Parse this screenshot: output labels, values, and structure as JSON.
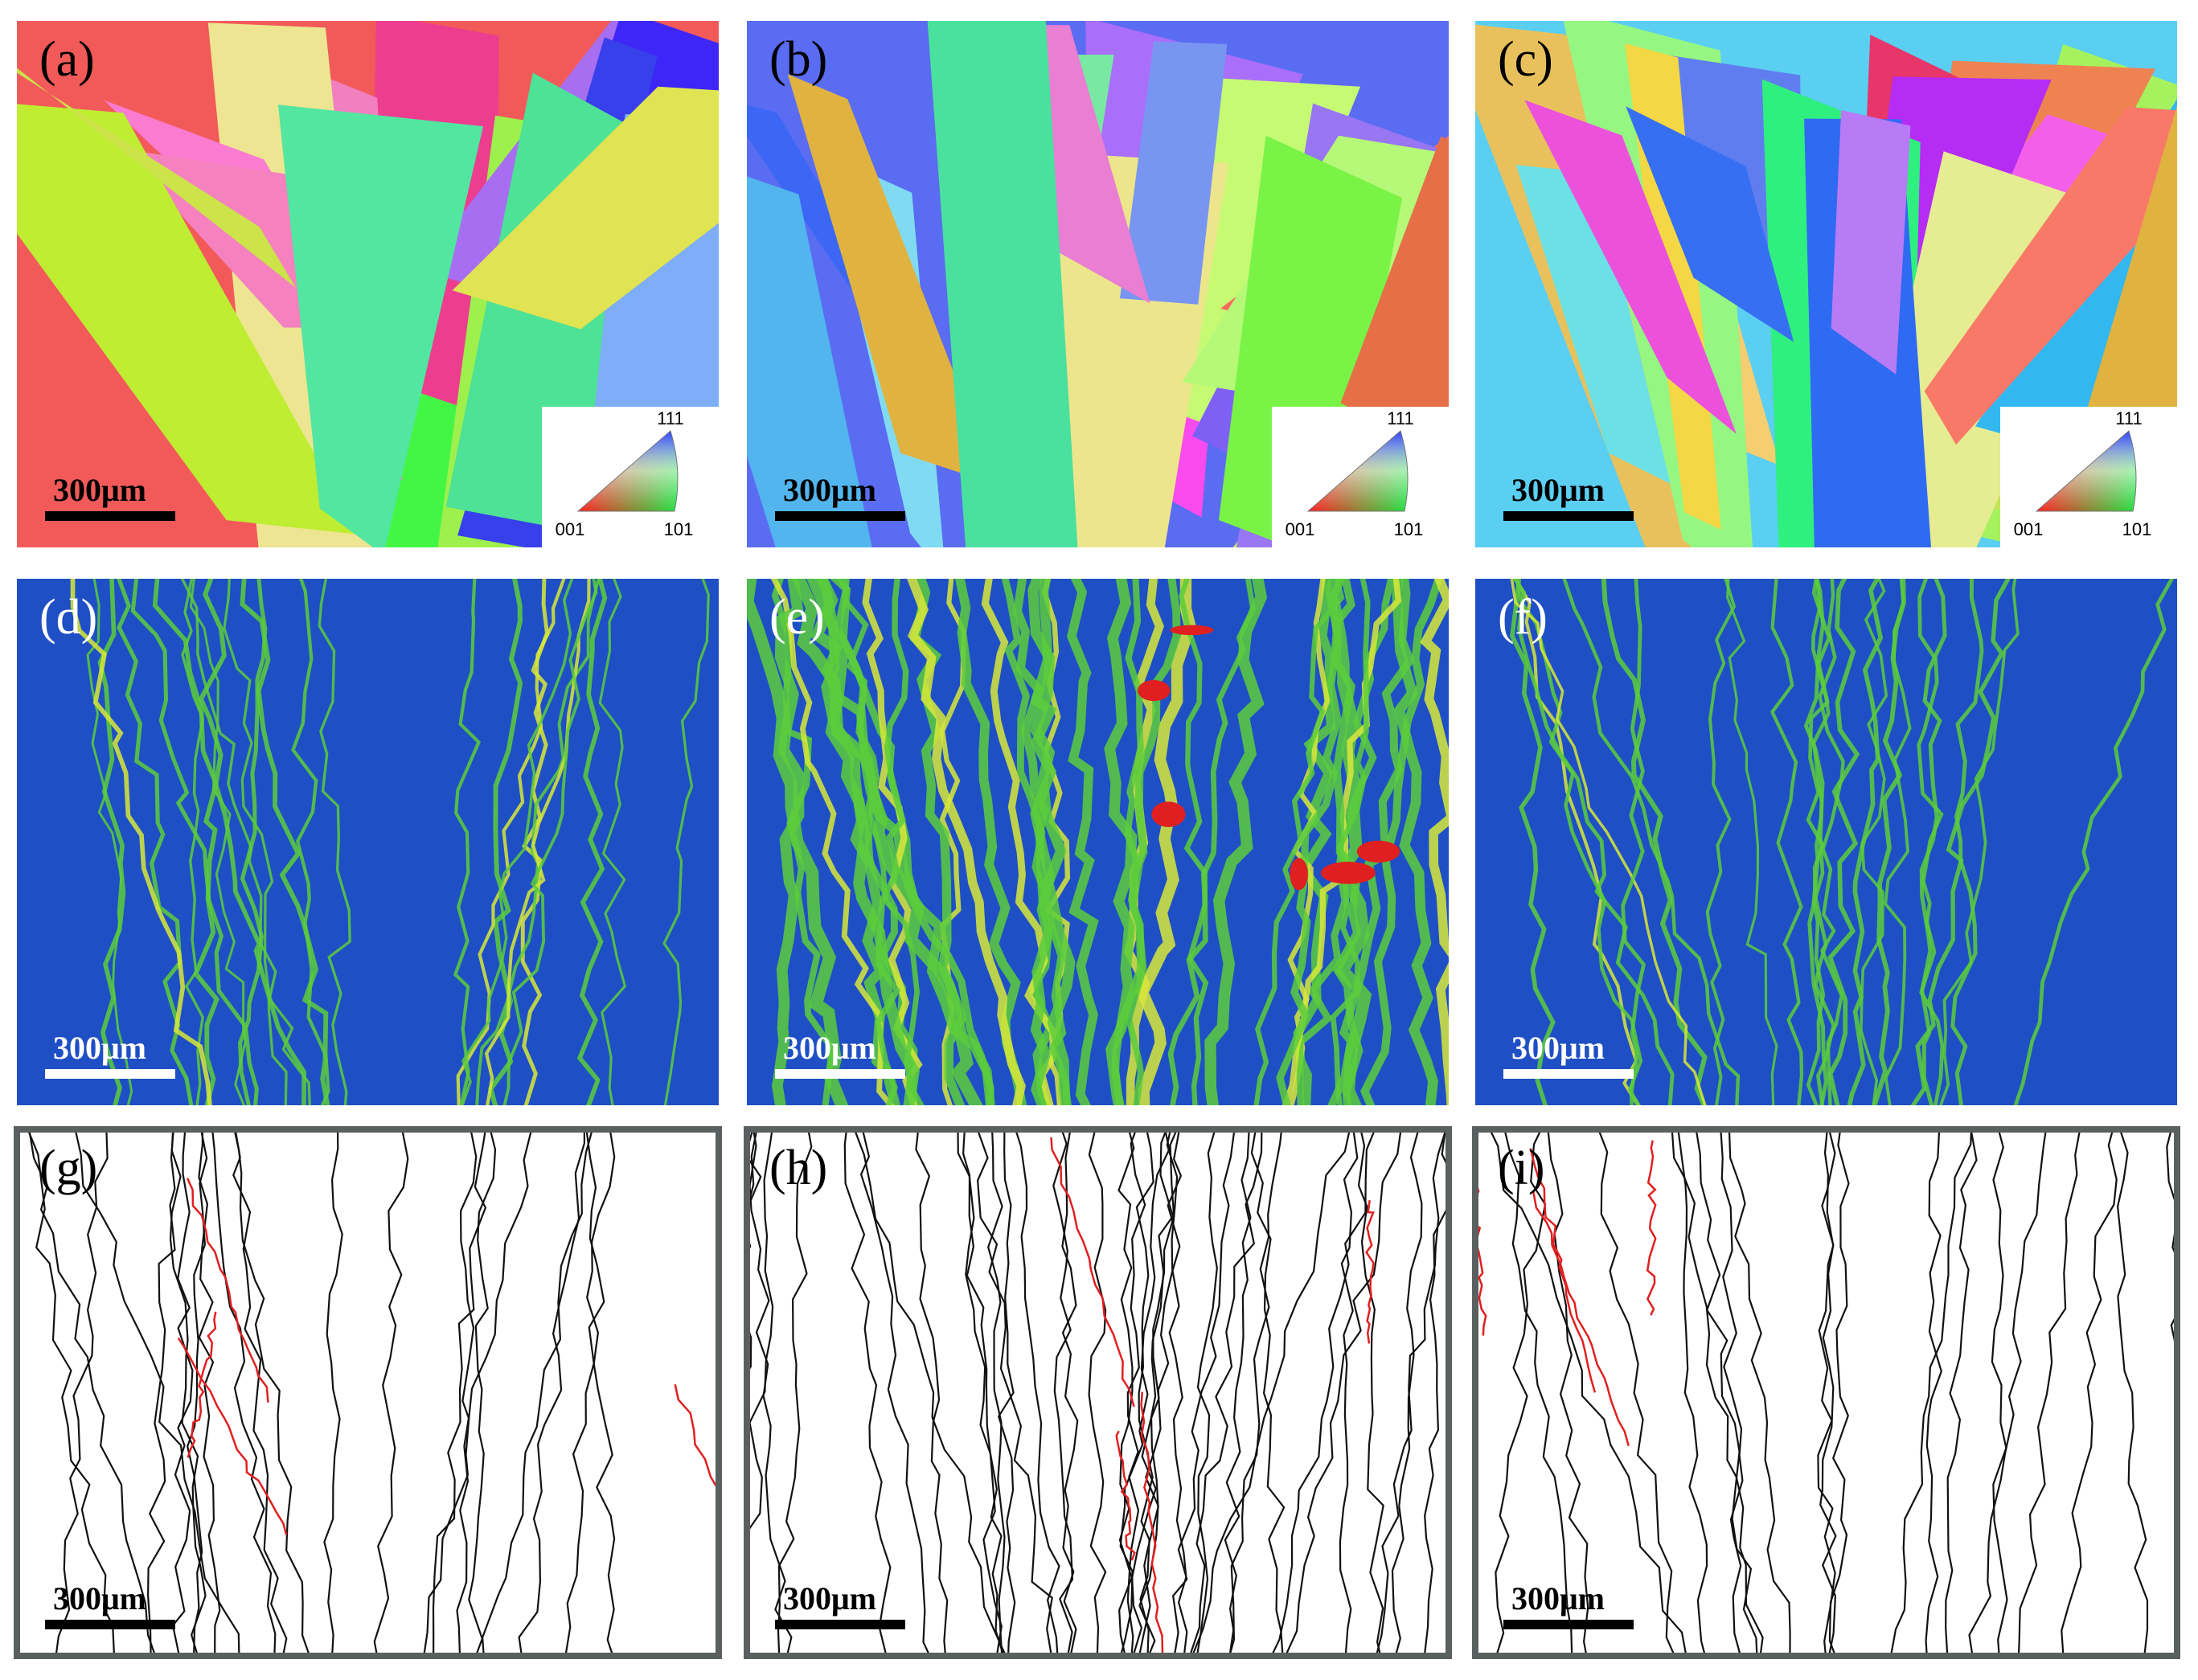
{
  "panels": [
    {
      "label": "(a)",
      "scale_bar": "300μm",
      "legend": {
        "top": "111",
        "left": "001",
        "right": "101"
      }
    },
    {
      "label": "(b)",
      "scale_bar": "300μm",
      "legend": {
        "top": "111",
        "left": "001",
        "right": "101"
      }
    },
    {
      "label": "(c)",
      "scale_bar": "300μm",
      "legend": {
        "top": "111",
        "left": "001",
        "right": "101"
      }
    },
    {
      "label": "(d)",
      "scale_bar": "300μm"
    },
    {
      "label": "(e)",
      "scale_bar": "300μm"
    },
    {
      "label": "(f)",
      "scale_bar": "300μm"
    },
    {
      "label": "(g)",
      "scale_bar": "300μm"
    },
    {
      "label": "(h)",
      "scale_bar": "300μm"
    },
    {
      "label": "(i)",
      "scale_bar": "300μm"
    }
  ]
}
